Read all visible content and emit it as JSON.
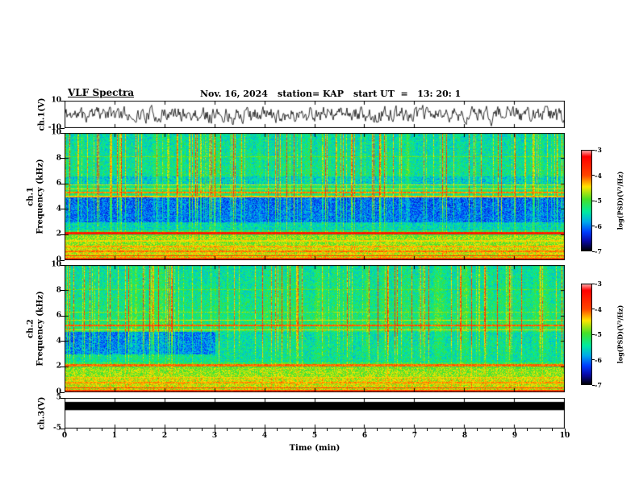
{
  "header": {
    "title": "VLF Spectra",
    "date": "Nov. 16, 2024",
    "station": "station= KAP",
    "start_ut": "start UT  =   13: 20: 1"
  },
  "chart_data": {
    "type": "heatmap",
    "title": "VLF Spectra",
    "station": "KAP",
    "date": "Nov. 16, 2024",
    "start_ut": "13:20:01",
    "x": {
      "label": "Time (min)",
      "range": [
        0,
        10
      ],
      "ticks": [
        0,
        1,
        2,
        3,
        4,
        5,
        6,
        7,
        8,
        9,
        10
      ],
      "minor_tick_step": 0.25
    },
    "colormap": {
      "label": "log(PSD)(V²/Hz)",
      "range_top_to_bottom": [
        -3,
        -7
      ],
      "ticks": [
        -3,
        -4,
        -5,
        -6,
        -7
      ],
      "stops": [
        {
          "v": -3.0,
          "rgb": [
            255,
            180,
            180
          ]
        },
        {
          "v": -3.25,
          "rgb": [
            255,
            0,
            0
          ]
        },
        {
          "v": -4.0,
          "rgb": [
            255,
            70,
            0
          ]
        },
        {
          "v": -4.45,
          "rgb": [
            255,
            230,
            0
          ]
        },
        {
          "v": -4.95,
          "rgb": [
            70,
            225,
            40
          ]
        },
        {
          "v": -5.45,
          "rgb": [
            0,
            235,
            160
          ]
        },
        {
          "v": -5.85,
          "rgb": [
            0,
            170,
            235
          ]
        },
        {
          "v": -6.25,
          "rgb": [
            0,
            60,
            255
          ]
        },
        {
          "v": -6.6,
          "rgb": [
            10,
            10,
            170
          ]
        },
        {
          "v": -7.0,
          "rgb": [
            0,
            0,
            0
          ]
        }
      ]
    },
    "panels": [
      {
        "id": "ch1_wave",
        "type": "line",
        "ylabel": "ch.1(V)",
        "ylim": [
          -10,
          10
        ],
        "yticks": [
          10,
          -10
        ],
        "signal": {
          "kind": "broadband noise waveform",
          "peak_V": 9,
          "seed": 11,
          "ar": 0.5,
          "drive": 4.8
        }
      },
      {
        "id": "ch1_spec",
        "type": "heatmap",
        "channel": "ch.1",
        "ylabel": "Frequency (kHz)",
        "ylim": [
          0,
          10
        ],
        "yticks": [
          0,
          2,
          4,
          6,
          8,
          10
        ],
        "zlim": [
          -7,
          -3
        ],
        "render": {
          "seed": 23,
          "base_level": -5.05,
          "base_slope": -0.05,
          "impulse_prob": 0.17,
          "bands": [
            {
              "f0": 3.0,
              "f1": 5.0,
              "delta": -0.85
            },
            {
              "f0": 2.35,
              "f1": 3.0,
              "delta": -0.4
            },
            {
              "f0": 5.9,
              "f1": 6.6,
              "delta": -0.3
            },
            {
              "f0": 0.0,
              "f1": 2.0,
              "delta": 0.35
            },
            {
              "f0": 0.0,
              "f1": 1.2,
              "delta": 0.15
            }
          ],
          "lines": [
            {
              "f": 2.15,
              "w": 0.1,
              "level": -3.55
            },
            {
              "f": 0.1,
              "w": 0.1,
              "level": -3.9
            },
            {
              "f": 0.38,
              "w": 0.06,
              "level": -3.85
            },
            {
              "f": 0.72,
              "w": 0.05,
              "level": -4.15
            },
            {
              "f": 1.12,
              "w": 0.05,
              "level": -4.3
            },
            {
              "f": 1.55,
              "w": 0.04,
              "level": -4.45
            },
            {
              "f": 5.05,
              "w": 0.05,
              "level": -4.35
            },
            {
              "f": 5.35,
              "w": 0.05,
              "level": -4.2
            },
            {
              "f": 5.65,
              "w": 0.04,
              "level": -4.5
            },
            {
              "f": 5.95,
              "w": 0.04,
              "level": -4.6
            },
            {
              "f": 6.55,
              "w": 0.03,
              "level": -4.8
            },
            {
              "f": 8.15,
              "w": 0.03,
              "level": -4.9
            }
          ]
        }
      },
      {
        "id": "ch2_spec",
        "type": "heatmap",
        "channel": "ch.2",
        "ylabel": "Frequency (kHz)",
        "ylim": [
          0,
          10
        ],
        "yticks": [
          0,
          2,
          4,
          6,
          8,
          10
        ],
        "zlim": [
          -7,
          -3
        ],
        "render": {
          "seed": 57,
          "base_level": -5.0,
          "base_slope": -0.05,
          "impulse_prob": 0.15,
          "bands": [
            {
              "f0": 3.0,
              "f1": 4.8,
              "delta": -0.8,
              "t_fade": 3.0,
              "fade_factor": 0.35
            },
            {
              "f0": 2.35,
              "f1": 3.0,
              "delta": -0.3
            },
            {
              "f0": 0.0,
              "f1": 2.0,
              "delta": 0.3
            },
            {
              "f0": 0.0,
              "f1": 1.2,
              "delta": 0.15
            }
          ],
          "lines": [
            {
              "f": 2.15,
              "w": 0.07,
              "level": -4.1
            },
            {
              "f": 0.1,
              "w": 0.1,
              "level": -3.9
            },
            {
              "f": 0.38,
              "w": 0.06,
              "level": -3.9
            },
            {
              "f": 0.78,
              "w": 0.05,
              "level": -4.25
            },
            {
              "f": 1.18,
              "w": 0.04,
              "level": -4.4
            },
            {
              "f": 4.95,
              "w": 0.04,
              "level": -4.45
            },
            {
              "f": 5.3,
              "w": 0.06,
              "level": -4.05
            },
            {
              "f": 5.7,
              "w": 0.04,
              "level": -4.55
            },
            {
              "f": 6.3,
              "w": 0.03,
              "level": -4.8
            },
            {
              "f": 8.1,
              "w": 0.03,
              "level": -4.95
            }
          ]
        }
      },
      {
        "id": "ch3_wave",
        "type": "line",
        "ylabel": "ch.3(V)",
        "ylim": [
          -5,
          5
        ],
        "yticks": [
          5,
          -5
        ],
        "signal": {
          "kind": "saturated solid band",
          "band_top_V": 3.7,
          "band_bottom_V": 1.0
        }
      }
    ]
  }
}
